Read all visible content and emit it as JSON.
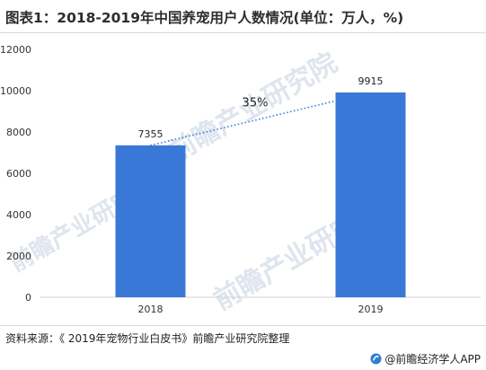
{
  "title": "图表1：2018-2019年中国养宠用户人数情况(单位：万人，%)",
  "source": "资料来源：《 2019年宠物行业白皮书》前瞻产业研究院整理",
  "brand": "@前瞻经济学人APP",
  "watermark": "前瞻产业研究院",
  "colors": {
    "bar": "#3a78d8",
    "trend": "#2f7fd6"
  },
  "chart_data": {
    "type": "bar",
    "categories": [
      "2018",
      "2019"
    ],
    "values": [
      7355,
      9915
    ],
    "data_labels": [
      "7355",
      "9915"
    ],
    "ylim": [
      0,
      12000
    ],
    "yticks": [
      0,
      2000,
      4000,
      6000,
      8000,
      10000,
      12000
    ],
    "grid": false,
    "trend_line": {
      "from": "2018",
      "to": "2019",
      "label": "35%",
      "style": "dotted"
    }
  }
}
